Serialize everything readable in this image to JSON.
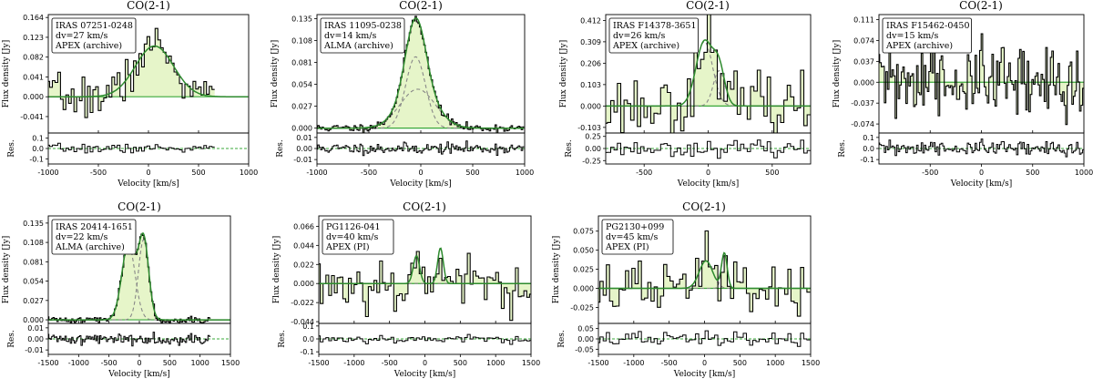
{
  "figure": {
    "theme": {
      "fill_color": "#e6f5c9",
      "fit_color": "#2e8b2e",
      "component_color": "#888888",
      "step_color": "#000000",
      "zero_line_color": "#3aa83a"
    },
    "xlabel": "Velocity [km/s]",
    "ylabel": "Flux density [Jy]",
    "res_label": "Res."
  },
  "chart_data": [
    {
      "type": "line",
      "title": "CO(2-1)",
      "label_lines": [
        "IRAS 07251-0248",
        "dv=27 km/s",
        "APEX (archive)"
      ],
      "xlim": [
        -1000,
        1000
      ],
      "xticks": [
        "-1000",
        "-500",
        "0",
        "500",
        "1000"
      ],
      "xtick_values": [
        -1000,
        -500,
        0,
        500,
        1000
      ],
      "ylim": [
        -0.075,
        0.17
      ],
      "yticks": [
        "-0.041",
        "0.000",
        "0.041",
        "0.082",
        "0.123",
        "0.164"
      ],
      "ytick_values": [
        -0.041,
        0,
        0.041,
        0.082,
        0.123,
        0.164
      ],
      "res_ylim": [
        -0.15,
        0.15
      ],
      "res_ticks": [
        "-0.1",
        "0.0",
        "0.1"
      ],
      "res_tick_values": [
        -0.1,
        0.0,
        0.1
      ],
      "line_x": [
        -1000,
        650
      ],
      "channel_width": 27,
      "noise": 0.022,
      "components": [
        {
          "amplitude": 0.105,
          "center": 60,
          "sigma": 190
        }
      ],
      "show_components": false,
      "seed": 7
    },
    {
      "type": "line",
      "title": "CO(2-1)",
      "label_lines": [
        "IRAS 11095-0238",
        "dv=14 km/s",
        "ALMA (archive)"
      ],
      "xlim": [
        -1000,
        1000
      ],
      "xticks": [
        "-1000",
        "-500",
        "0",
        "500",
        "1000"
      ],
      "xtick_values": [
        -1000,
        -500,
        0,
        500,
        1000
      ],
      "ylim": [
        -0.006,
        0.14
      ],
      "yticks": [
        "0.000",
        "0.027",
        "0.054",
        "0.081",
        "0.108",
        "0.135"
      ],
      "ytick_values": [
        0,
        0.027,
        0.054,
        0.081,
        0.108,
        0.135
      ],
      "res_ylim": [
        -0.014,
        0.014
      ],
      "res_ticks": [
        "-0.01",
        "0.00",
        "0.01"
      ],
      "res_tick_values": [
        -0.01,
        0.0,
        0.01
      ],
      "line_x": [
        -1000,
        1000
      ],
      "channel_width": 14,
      "noise": 0.0025,
      "components": [
        {
          "amplitude": 0.088,
          "center": -50,
          "sigma": 95
        },
        {
          "amplitude": 0.048,
          "center": -30,
          "sigma": 170
        }
      ],
      "show_components": true,
      "seed": 11
    },
    {
      "type": "line",
      "title": "CO(2-1)",
      "label_lines": [
        "IRAS F14378-3651",
        "dv=26 km/s",
        "APEX (archive)"
      ],
      "xlim": [
        -800,
        800
      ],
      "xticks": [
        "-500",
        "0",
        "500"
      ],
      "xtick_values": [
        -500,
        0,
        500
      ],
      "ylim": [
        -0.13,
        0.44
      ],
      "yticks": [
        "-0.103",
        "0.000",
        "0.103",
        "0.206",
        "0.309",
        "0.412"
      ],
      "ytick_values": [
        -0.103,
        0,
        0.103,
        0.206,
        0.309,
        0.412
      ],
      "res_ylim": [
        -0.32,
        0.32
      ],
      "res_ticks": [
        "-0.25",
        "0.00",
        "0.25"
      ],
      "res_tick_values": [
        -0.25,
        0.0,
        0.25
      ],
      "line_x": [
        -800,
        800
      ],
      "channel_width": 26,
      "noise": 0.075,
      "components": [
        {
          "amplitude": 0.31,
          "center": -30,
          "sigma": 65
        },
        {
          "amplitude": 0.17,
          "center": 85,
          "sigma": 45
        }
      ],
      "show_components": true,
      "seed": 23
    },
    {
      "type": "line",
      "title": "CO(2-1)",
      "label_lines": [
        "IRAS F15462-0450",
        "dv=15 km/s",
        "APEX (archive)"
      ],
      "xlim": [
        -1000,
        1000
      ],
      "xticks": [
        "-500",
        "0",
        "500",
        "1000"
      ],
      "xtick_values": [
        -500,
        0,
        500,
        1000
      ],
      "ylim": [
        -0.09,
        0.12
      ],
      "yticks": [
        "-0.074",
        "-0.037",
        "0.000",
        "0.037",
        "0.074",
        "0.111"
      ],
      "ytick_values": [
        -0.074,
        -0.037,
        0,
        0.037,
        0.074,
        0.111
      ],
      "res_ylim": [
        -0.14,
        0.14
      ],
      "res_ticks": [
        "-0.1",
        "0.0",
        "0.1"
      ],
      "res_tick_values": [
        -0.1,
        0.0,
        0.1
      ],
      "line_x": [
        -1000,
        1000
      ],
      "channel_width": 15,
      "noise": 0.035,
      "components": [],
      "show_components": false,
      "seed": 31
    },
    {
      "type": "line",
      "title": "CO(2-1)",
      "label_lines": [
        "IRAS 20414-1651",
        "dv=22 km/s",
        "ALMA (archive)"
      ],
      "xlim": [
        -1500,
        1500
      ],
      "xticks": [
        "-1500",
        "-1000",
        "-500",
        "0",
        "500",
        "1000",
        "1500"
      ],
      "xtick_values": [
        -1500,
        -1000,
        -500,
        0,
        500,
        1000,
        1500
      ],
      "ylim": [
        -0.005,
        0.145
      ],
      "yticks": [
        "0.000",
        "0.027",
        "0.054",
        "0.081",
        "0.108",
        "0.135"
      ],
      "ytick_values": [
        0,
        0.027,
        0.054,
        0.081,
        0.108,
        0.135
      ],
      "res_ylim": [
        -0.014,
        0.014
      ],
      "res_ticks": [
        "-0.01",
        "0.00",
        "0.01"
      ],
      "res_tick_values": [
        -0.01,
        0.0,
        0.01
      ],
      "line_x": [
        -1500,
        1180
      ],
      "channel_width": 22,
      "noise": 0.0025,
      "components": [
        {
          "amplitude": 0.105,
          "center": -180,
          "sigma": 110
        },
        {
          "amplitude": 0.112,
          "center": 70,
          "sigma": 85
        }
      ],
      "show_components": true,
      "seed": 41
    },
    {
      "type": "line",
      "title": "CO(2-1)",
      "label_lines": [
        "PG1126-041",
        "dv=40 km/s",
        "APEX (PI)"
      ],
      "xlim": [
        -1500,
        1500
      ],
      "xticks": [
        "-1500",
        "-1000",
        "-500",
        "0",
        "500",
        "1000",
        "1500"
      ],
      "xtick_values": [
        -1500,
        -1000,
        -500,
        0,
        500,
        1000,
        1500
      ],
      "ylim": [
        -0.046,
        0.078
      ],
      "yticks": [
        "-0.044",
        "-0.022",
        "0.000",
        "0.022",
        "0.044",
        "0.066"
      ],
      "ytick_values": [
        -0.044,
        -0.022,
        0,
        0.022,
        0.044,
        0.066
      ],
      "res_ylim": [
        -0.12,
        0.12
      ],
      "res_ticks": [
        "-0.1",
        "0.0",
        "0.1"
      ],
      "res_tick_values": [
        -0.1,
        0.0,
        0.1
      ],
      "line_x": [
        -1500,
        1500
      ],
      "channel_width": 40,
      "noise": 0.016,
      "components": [
        {
          "amplitude": 0.032,
          "center": -120,
          "sigma": 45
        },
        {
          "amplitude": 0.041,
          "center": 220,
          "sigma": 40
        }
      ],
      "show_components": true,
      "seed": 53
    },
    {
      "type": "line",
      "title": "CO(2-1)",
      "label_lines": [
        "PG2130+099",
        "dv=45 km/s",
        "APEX (PI)"
      ],
      "xlim": [
        -1500,
        1500
      ],
      "xticks": [
        "-1500",
        "-1000",
        "-500",
        "0",
        "500",
        "1000",
        "1500"
      ],
      "xtick_values": [
        -1500,
        -1000,
        -500,
        0,
        500,
        1000,
        1500
      ],
      "ylim": [
        -0.046,
        0.095
      ],
      "yticks": [
        "-0.025",
        "0.000",
        "0.025",
        "0.050",
        "0.075"
      ],
      "ytick_values": [
        -0.025,
        0,
        0.025,
        0.05,
        0.075
      ],
      "res_ylim": [
        -0.075,
        0.075
      ],
      "res_ticks": [
        "-0.05",
        "0.00",
        "0.05"
      ],
      "res_tick_values": [
        -0.05,
        0.0,
        0.05
      ],
      "line_x": [
        -1500,
        1500
      ],
      "channel_width": 45,
      "noise": 0.018,
      "components": [
        {
          "amplitude": 0.036,
          "center": 20,
          "sigma": 95
        },
        {
          "amplitude": 0.046,
          "center": 280,
          "sigma": 40
        }
      ],
      "show_components": true,
      "seed": 67
    }
  ]
}
